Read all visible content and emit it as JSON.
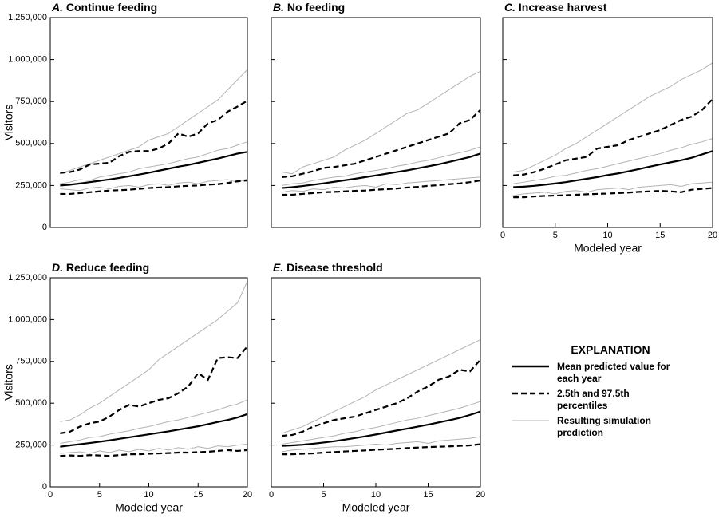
{
  "explanation_title": "EXPLANATION",
  "chart_data": [
    {
      "type": "line",
      "panel": "A.",
      "title": "Continue feeding",
      "ylabel": "Visitors",
      "x": [
        1,
        2,
        3,
        4,
        5,
        6,
        7,
        8,
        9,
        10,
        11,
        12,
        13,
        14,
        15,
        16,
        17,
        18,
        19,
        20
      ],
      "xlim": [
        0,
        20
      ],
      "ylim": [
        0,
        1250000
      ],
      "yticks": [
        0,
        {
          "value": 250000,
          "label": "250,000"
        },
        {
          "value": 500000,
          "label": "500,000"
        },
        {
          "value": 750000,
          "label": "750,000"
        },
        {
          "value": 1000000,
          "label": "1,000,000"
        },
        {
          "value": 1250000,
          "label": "1,250,000"
        }
      ],
      "series": [
        {
          "name": "Resulting simulation prediction",
          "color": "#b3b3b3",
          "runs": [
            [
              320000,
              340000,
              360000,
              380000,
              400000,
              420000,
              440000,
              460000,
              480000,
              520000,
              540000,
              560000,
              600000,
              640000,
              680000,
              720000,
              760000,
              820000,
              880000,
              940000
            ],
            [
              230000,
              225000,
              220000,
              235000,
              240000,
              230000,
              245000,
              250000,
              240000,
              255000,
              260000,
              250000,
              265000,
              270000,
              260000,
              275000,
              280000,
              285000,
              270000,
              290000
            ],
            [
              260000,
              270000,
              285000,
              280000,
              300000,
              310000,
              320000,
              330000,
              350000,
              360000,
              370000,
              380000,
              395000,
              410000,
              420000,
              440000,
              460000,
              470000,
              490000,
              510000
            ]
          ]
        },
        {
          "name": "2.5th and 97.5th percentiles",
          "color": "#000000",
          "dashed": true,
          "lower": [
            200000,
            200000,
            205000,
            210000,
            215000,
            220000,
            222000,
            225000,
            230000,
            235000,
            238000,
            240000,
            245000,
            248000,
            250000,
            255000,
            258000,
            265000,
            275000,
            280000
          ],
          "upper": [
            325000,
            330000,
            345000,
            375000,
            380000,
            385000,
            425000,
            450000,
            455000,
            455000,
            470000,
            500000,
            560000,
            540000,
            560000,
            620000,
            640000,
            690000,
            720000,
            755000
          ]
        },
        {
          "name": "Mean predicted value for each year",
          "color": "#000000",
          "values": [
            250000,
            255000,
            262000,
            270000,
            278000,
            286000,
            295000,
            305000,
            315000,
            326000,
            338000,
            350000,
            362000,
            372000,
            385000,
            398000,
            410000,
            425000,
            440000,
            450000
          ]
        }
      ]
    },
    {
      "type": "line",
      "panel": "B.",
      "title": "No feeding",
      "x": [
        1,
        2,
        3,
        4,
        5,
        6,
        7,
        8,
        9,
        10,
        11,
        12,
        13,
        14,
        15,
        16,
        17,
        18,
        19,
        20
      ],
      "xlim": [
        0,
        20
      ],
      "ylim": [
        0,
        1250000
      ],
      "yticks": [
        0,
        250000,
        500000,
        750000,
        1000000,
        1250000
      ],
      "ytick_labels": false,
      "series": [
        {
          "color": "#b3b3b3",
          "runs": [
            [
              330000,
              320000,
              360000,
              380000,
              400000,
              420000,
              460000,
              490000,
              520000,
              560000,
              600000,
              640000,
              680000,
              700000,
              740000,
              780000,
              820000,
              860000,
              900000,
              930000
            ],
            [
              210000,
              220000,
              215000,
              230000,
              225000,
              240000,
              235000,
              245000,
              250000,
              240000,
              260000,
              255000,
              265000,
              270000,
              275000,
              280000,
              285000,
              290000,
              295000,
              300000
            ],
            [
              250000,
              260000,
              265000,
              280000,
              290000,
              300000,
              305000,
              320000,
              330000,
              340000,
              350000,
              365000,
              375000,
              390000,
              400000,
              415000,
              430000,
              445000,
              460000,
              480000
            ]
          ]
        },
        {
          "color": "#000000",
          "dashed": true,
          "lower": [
            195000,
            195000,
            200000,
            205000,
            210000,
            212000,
            215000,
            218000,
            220000,
            225000,
            228000,
            232000,
            238000,
            242000,
            248000,
            252000,
            258000,
            262000,
            270000,
            280000
          ],
          "upper": [
            300000,
            305000,
            320000,
            335000,
            355000,
            360000,
            370000,
            380000,
            400000,
            420000,
            440000,
            460000,
            480000,
            500000,
            520000,
            540000,
            560000,
            620000,
            640000,
            700000
          ]
        },
        {
          "color": "#000000",
          "values": [
            235000,
            240000,
            247000,
            255000,
            263000,
            272000,
            281000,
            290000,
            300000,
            310000,
            320000,
            330000,
            340000,
            352000,
            364000,
            376000,
            390000,
            405000,
            420000,
            440000
          ]
        }
      ]
    },
    {
      "type": "line",
      "panel": "C.",
      "title": "Increase harvest",
      "xlabel": "Modeled year",
      "x": [
        1,
        2,
        3,
        4,
        5,
        6,
        7,
        8,
        9,
        10,
        11,
        12,
        13,
        14,
        15,
        16,
        17,
        18,
        19,
        20
      ],
      "xlim": [
        0,
        20
      ],
      "xticks": [
        0,
        5,
        10,
        15,
        20
      ],
      "ylim": [
        0,
        1250000
      ],
      "yticks": [
        0,
        250000,
        500000,
        750000,
        1000000,
        1250000
      ],
      "ytick_labels": false,
      "series": [
        {
          "color": "#b3b3b3",
          "runs": [
            [
              330000,
              340000,
              370000,
              400000,
              430000,
              470000,
              500000,
              540000,
              580000,
              620000,
              660000,
              700000,
              740000,
              780000,
              810000,
              840000,
              880000,
              910000,
              940000,
              980000
            ],
            [
              190000,
              200000,
              205000,
              210000,
              200000,
              215000,
              220000,
              210000,
              225000,
              230000,
              235000,
              225000,
              240000,
              245000,
              250000,
              255000,
              245000,
              260000,
              265000,
              270000
            ],
            [
              260000,
              270000,
              280000,
              290000,
              305000,
              310000,
              325000,
              340000,
              350000,
              365000,
              380000,
              395000,
              410000,
              425000,
              440000,
              460000,
              475000,
              495000,
              510000,
              530000
            ]
          ]
        },
        {
          "color": "#000000",
          "dashed": true,
          "lower": [
            180000,
            180000,
            185000,
            188000,
            190000,
            192000,
            195000,
            198000,
            200000,
            202000,
            205000,
            208000,
            212000,
            215000,
            218000,
            215000,
            210000,
            225000,
            230000,
            235000
          ],
          "upper": [
            310000,
            315000,
            330000,
            350000,
            375000,
            400000,
            410000,
            420000,
            470000,
            480000,
            490000,
            520000,
            540000,
            560000,
            580000,
            610000,
            640000,
            660000,
            700000,
            765000
          ]
        },
        {
          "color": "#000000",
          "values": [
            240000,
            243000,
            248000,
            255000,
            262000,
            270000,
            280000,
            290000,
            300000,
            312000,
            322000,
            335000,
            348000,
            362000,
            375000,
            388000,
            400000,
            415000,
            435000,
            455000
          ]
        }
      ]
    },
    {
      "type": "line",
      "panel": "D.",
      "title": "Reduce feeding",
      "xlabel": "Modeled year",
      "ylabel": "Visitors",
      "x": [
        1,
        2,
        3,
        4,
        5,
        6,
        7,
        8,
        9,
        10,
        11,
        12,
        13,
        14,
        15,
        16,
        17,
        18,
        19,
        20
      ],
      "xlim": [
        0,
        20
      ],
      "xticks": [
        0,
        5,
        10,
        15,
        20
      ],
      "ylim": [
        0,
        1250000
      ],
      "yticks": [
        0,
        {
          "value": 250000,
          "label": "250,000"
        },
        {
          "value": 500000,
          "label": "500,000"
        },
        {
          "value": 750000,
          "label": "750,000"
        },
        {
          "value": 1000000,
          "label": "1,000,000"
        },
        {
          "value": 1250000,
          "label": "1,250,000"
        }
      ],
      "series": [
        {
          "color": "#b3b3b3",
          "runs": [
            [
              390000,
              400000,
              430000,
              470000,
              500000,
              540000,
              580000,
              620000,
              660000,
              700000,
              760000,
              800000,
              840000,
              880000,
              920000,
              960000,
              1000000,
              1050000,
              1100000,
              1230000
            ],
            [
              200000,
              205000,
              210000,
              200000,
              215000,
              205000,
              220000,
              210000,
              225000,
              215000,
              230000,
              220000,
              235000,
              225000,
              240000,
              230000,
              245000,
              240000,
              250000,
              255000
            ],
            [
              260000,
              270000,
              280000,
              295000,
              300000,
              315000,
              325000,
              335000,
              350000,
              360000,
              375000,
              390000,
              400000,
              415000,
              430000,
              445000,
              460000,
              480000,
              495000,
              520000
            ]
          ]
        },
        {
          "color": "#000000",
          "dashed": true,
          "lower": [
            185000,
            188000,
            185000,
            190000,
            188000,
            185000,
            190000,
            195000,
            195000,
            198000,
            200000,
            202000,
            205000,
            205000,
            208000,
            210000,
            215000,
            220000,
            215000,
            220000
          ],
          "upper": [
            320000,
            330000,
            360000,
            380000,
            390000,
            420000,
            460000,
            490000,
            480000,
            500000,
            520000,
            530000,
            560000,
            600000,
            680000,
            640000,
            770000,
            775000,
            770000,
            840000
          ]
        },
        {
          "color": "#000000",
          "values": [
            240000,
            248000,
            255000,
            262000,
            270000,
            278000,
            287000,
            296000,
            305000,
            314000,
            323000,
            332000,
            342000,
            352000,
            362000,
            375000,
            388000,
            400000,
            415000,
            435000
          ]
        }
      ]
    },
    {
      "type": "line",
      "panel": "E.",
      "title": "Disease threshold",
      "xlabel": "Modeled year",
      "x": [
        1,
        2,
        3,
        4,
        5,
        6,
        7,
        8,
        9,
        10,
        11,
        12,
        13,
        14,
        15,
        16,
        17,
        18,
        19,
        20
      ],
      "xlim": [
        0,
        20
      ],
      "xticks": [
        0,
        5,
        10,
        15,
        20
      ],
      "ylim": [
        0,
        1250000
      ],
      "yticks": [
        0,
        250000,
        500000,
        750000,
        1000000,
        1250000
      ],
      "ytick_labels": false,
      "series": [
        {
          "color": "#b3b3b3",
          "runs": [
            [
              320000,
              340000,
              360000,
              390000,
              420000,
              450000,
              480000,
              510000,
              540000,
              580000,
              610000,
              640000,
              670000,
              700000,
              730000,
              760000,
              790000,
              820000,
              850000,
              880000
            ],
            [
              210000,
              220000,
              225000,
              230000,
              235000,
              240000,
              240000,
              245000,
              250000,
              255000,
              250000,
              260000,
              265000,
              270000,
              260000,
              275000,
              280000,
              285000,
              290000,
              300000
            ],
            [
              255000,
              265000,
              275000,
              285000,
              295000,
              305000,
              320000,
              330000,
              345000,
              355000,
              370000,
              385000,
              400000,
              410000,
              425000,
              440000,
              455000,
              470000,
              490000,
              510000
            ]
          ]
        },
        {
          "color": "#000000",
          "dashed": true,
          "lower": [
            195000,
            195000,
            198000,
            200000,
            205000,
            208000,
            212000,
            215000,
            218000,
            222000,
            225000,
            228000,
            232000,
            235000,
            238000,
            240000,
            242000,
            245000,
            248000,
            255000
          ],
          "upper": [
            305000,
            310000,
            330000,
            360000,
            380000,
            400000,
            410000,
            420000,
            440000,
            460000,
            480000,
            500000,
            530000,
            570000,
            600000,
            640000,
            660000,
            700000,
            690000,
            760000
          ]
        },
        {
          "color": "#000000",
          "values": [
            245000,
            248000,
            252000,
            258000,
            265000,
            273000,
            282000,
            292000,
            302000,
            313000,
            325000,
            337000,
            348000,
            360000,
            372000,
            385000,
            398000,
            412000,
            430000,
            450000
          ]
        }
      ]
    }
  ]
}
